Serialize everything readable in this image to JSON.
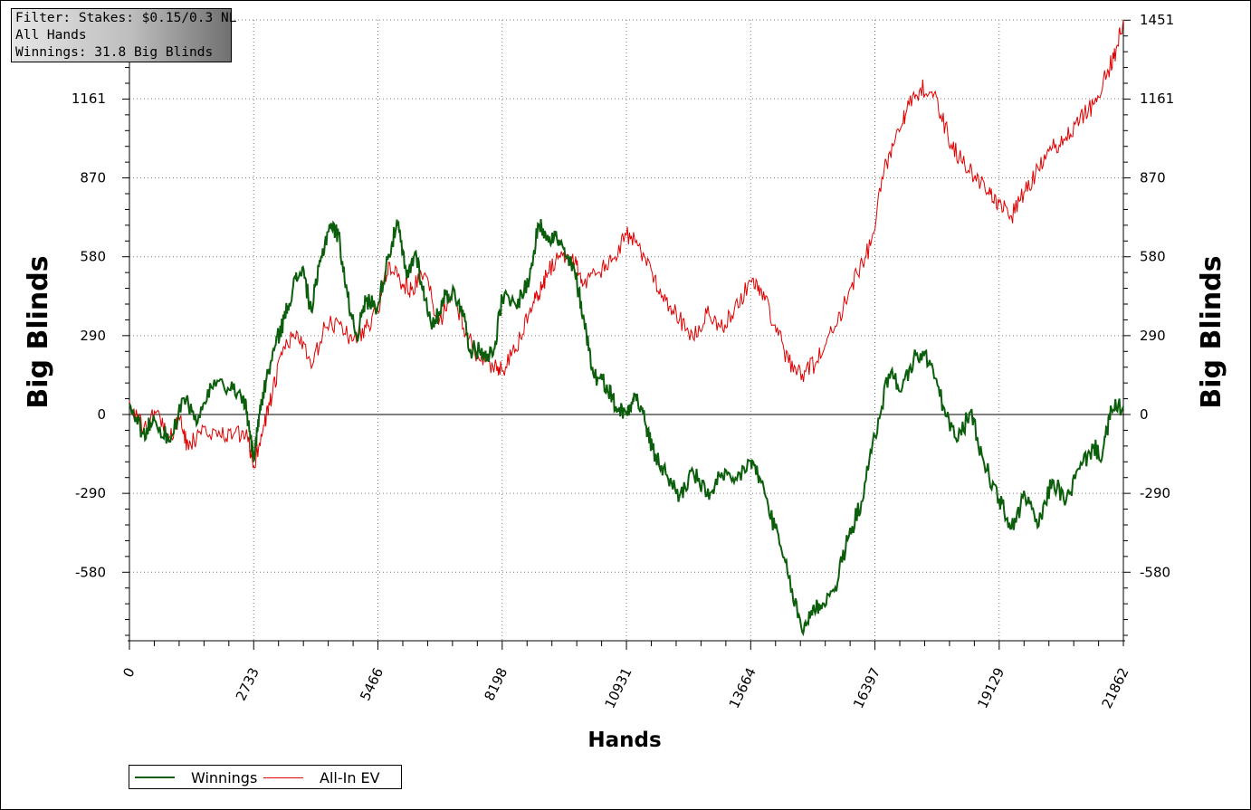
{
  "info_box": {
    "filter": "Filter: Stakes: $0.15/0.3 NL",
    "scope": "All Hands",
    "winnings": "Winnings: 31.8 Big Blinds"
  },
  "colors": {
    "winnings": "#0b5e0b",
    "all_in_ev": "#e00000",
    "grid": "#7a7a7a",
    "zero_line": "#000000"
  },
  "chart_data": {
    "type": "line",
    "xlabel": "Hands",
    "ylabel": "Big Blinds",
    "ylabel_right": "Big Blinds",
    "xlim": [
      0,
      21862
    ],
    "ylim": [
      -830,
      1451
    ],
    "x_ticks": [
      0,
      2733,
      5466,
      8198,
      10931,
      13664,
      16397,
      19129,
      21862
    ],
    "y_ticks": [
      -580,
      -290,
      0,
      290,
      580,
      870,
      1161,
      1451
    ],
    "grid": true,
    "legend_placement": "bottom-left",
    "series": [
      {
        "name": "Winnings",
        "color": "#0b5e0b",
        "points": [
          [
            0,
            40
          ],
          [
            300,
            -70
          ],
          [
            550,
            -20
          ],
          [
            900,
            -100
          ],
          [
            1200,
            60
          ],
          [
            1500,
            -30
          ],
          [
            1800,
            100
          ],
          [
            2200,
            90
          ],
          [
            2500,
            70
          ],
          [
            2650,
            -60
          ],
          [
            2733,
            -170
          ],
          [
            2850,
            0
          ],
          [
            3000,
            120
          ],
          [
            3200,
            250
          ],
          [
            3400,
            350
          ],
          [
            3600,
            470
          ],
          [
            3800,
            540
          ],
          [
            4000,
            380
          ],
          [
            4200,
            560
          ],
          [
            4400,
            700
          ],
          [
            4600,
            660
          ],
          [
            4800,
            430
          ],
          [
            5000,
            290
          ],
          [
            5200,
            420
          ],
          [
            5466,
            400
          ],
          [
            5700,
            590
          ],
          [
            5900,
            700
          ],
          [
            6100,
            500
          ],
          [
            6300,
            600
          ],
          [
            6500,
            420
          ],
          [
            6700,
            320
          ],
          [
            6900,
            430
          ],
          [
            7100,
            450
          ],
          [
            7300,
            400
          ],
          [
            7500,
            240
          ],
          [
            7800,
            230
          ],
          [
            8000,
            220
          ],
          [
            8200,
            430
          ],
          [
            8500,
            400
          ],
          [
            8800,
            500
          ],
          [
            9000,
            700
          ],
          [
            9200,
            660
          ],
          [
            9400,
            650
          ],
          [
            9600,
            580
          ],
          [
            9800,
            520
          ],
          [
            10000,
            350
          ],
          [
            10200,
            150
          ],
          [
            10500,
            110
          ],
          [
            10700,
            30
          ],
          [
            10931,
            0
          ],
          [
            11100,
            80
          ],
          [
            11300,
            0
          ],
          [
            11500,
            -130
          ],
          [
            11800,
            -220
          ],
          [
            12100,
            -300
          ],
          [
            12400,
            -210
          ],
          [
            12700,
            -300
          ],
          [
            13000,
            -230
          ],
          [
            13300,
            -250
          ],
          [
            13664,
            -170
          ],
          [
            13900,
            -250
          ],
          [
            14200,
            -420
          ],
          [
            14500,
            -600
          ],
          [
            14800,
            -800
          ],
          [
            15000,
            -720
          ],
          [
            15200,
            -700
          ],
          [
            15500,
            -650
          ],
          [
            15800,
            -460
          ],
          [
            16100,
            -320
          ],
          [
            16397,
            -80
          ],
          [
            16700,
            150
          ],
          [
            17000,
            100
          ],
          [
            17300,
            220
          ],
          [
            17600,
            200
          ],
          [
            17900,
            30
          ],
          [
            18200,
            -100
          ],
          [
            18500,
            10
          ],
          [
            18800,
            -180
          ],
          [
            19129,
            -310
          ],
          [
            19400,
            -420
          ],
          [
            19700,
            -300
          ],
          [
            20000,
            -410
          ],
          [
            20300,
            -240
          ],
          [
            20600,
            -320
          ],
          [
            20900,
            -200
          ],
          [
            21200,
            -120
          ],
          [
            21400,
            -150
          ],
          [
            21600,
            20
          ],
          [
            21862,
            30
          ]
        ]
      },
      {
        "name": "All-In EV",
        "color": "#e00000",
        "points": [
          [
            0,
            50
          ],
          [
            300,
            -60
          ],
          [
            600,
            10
          ],
          [
            900,
            -80
          ],
          [
            1100,
            -20
          ],
          [
            1300,
            -130
          ],
          [
            1600,
            -40
          ],
          [
            2000,
            -80
          ],
          [
            2300,
            -70
          ],
          [
            2600,
            -90
          ],
          [
            2733,
            -190
          ],
          [
            2950,
            -40
          ],
          [
            3150,
            80
          ],
          [
            3400,
            250
          ],
          [
            3700,
            300
          ],
          [
            4000,
            170
          ],
          [
            4300,
            320
          ],
          [
            4600,
            340
          ],
          [
            4900,
            270
          ],
          [
            5200,
            320
          ],
          [
            5466,
            380
          ],
          [
            5700,
            560
          ],
          [
            6000,
            480
          ],
          [
            6200,
            460
          ],
          [
            6500,
            520
          ],
          [
            6800,
            330
          ],
          [
            7100,
            460
          ],
          [
            7400,
            300
          ],
          [
            7700,
            200
          ],
          [
            8000,
            170
          ],
          [
            8198,
            160
          ],
          [
            8500,
            240
          ],
          [
            8800,
            380
          ],
          [
            9000,
            440
          ],
          [
            9200,
            520
          ],
          [
            9500,
            600
          ],
          [
            9800,
            560
          ],
          [
            10000,
            480
          ],
          [
            10300,
            520
          ],
          [
            10600,
            560
          ],
          [
            10931,
            660
          ],
          [
            11200,
            620
          ],
          [
            11500,
            520
          ],
          [
            11800,
            420
          ],
          [
            12100,
            350
          ],
          [
            12400,
            280
          ],
          [
            12700,
            370
          ],
          [
            13000,
            320
          ],
          [
            13300,
            380
          ],
          [
            13664,
            490
          ],
          [
            13900,
            460
          ],
          [
            14200,
            330
          ],
          [
            14500,
            190
          ],
          [
            14800,
            150
          ],
          [
            15100,
            190
          ],
          [
            15400,
            300
          ],
          [
            15700,
            390
          ],
          [
            16000,
            520
          ],
          [
            16300,
            620
          ],
          [
            16600,
            900
          ],
          [
            16900,
            1050
          ],
          [
            17100,
            1120
          ],
          [
            17400,
            1200
          ],
          [
            17700,
            1180
          ],
          [
            18000,
            1030
          ],
          [
            18300,
            930
          ],
          [
            18600,
            880
          ],
          [
            18900,
            810
          ],
          [
            19129,
            780
          ],
          [
            19400,
            730
          ],
          [
            19700,
            820
          ],
          [
            20000,
            900
          ],
          [
            20300,
            980
          ],
          [
            20600,
            1020
          ],
          [
            20900,
            1080
          ],
          [
            21200,
            1140
          ],
          [
            21500,
            1250
          ],
          [
            21700,
            1340
          ],
          [
            21862,
            1451
          ]
        ]
      }
    ]
  }
}
